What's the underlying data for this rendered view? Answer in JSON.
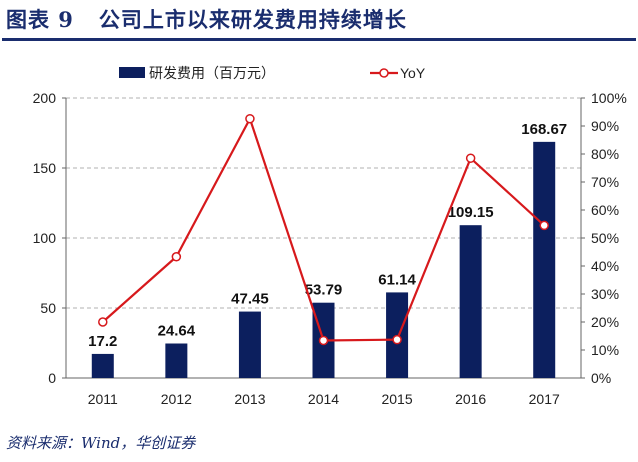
{
  "title": "图表 9   公司上市以来研发费用持续增长",
  "source": "资料来源：Wind，华创证券",
  "chart_data": {
    "type": "bar+line",
    "categories": [
      "2011",
      "2012",
      "2013",
      "2014",
      "2015",
      "2016",
      "2017"
    ],
    "series": [
      {
        "name": "研发费用（百万元）",
        "type": "bar",
        "axis": "left",
        "color": "#0c1f5e",
        "values": [
          17.2,
          24.64,
          47.45,
          53.79,
          61.14,
          109.15,
          168.67
        ],
        "labels": [
          "17.2",
          "24.64",
          "47.45",
          "53.79",
          "61.14",
          "109.15",
          "168.67"
        ]
      },
      {
        "name": "YoY",
        "type": "line",
        "axis": "right",
        "color": "#d7191c",
        "values": [
          20,
          43.3,
          92.6,
          13.4,
          13.7,
          78.5,
          54.5
        ]
      }
    ],
    "ylim_left": [
      0,
      200
    ],
    "yticks_left": [
      "0",
      "50",
      "100",
      "150",
      "200"
    ],
    "ylim_right": [
      0,
      100
    ],
    "yticks_right": [
      "0%",
      "10%",
      "20%",
      "30%",
      "40%",
      "50%",
      "60%",
      "70%",
      "80%",
      "90%",
      "100%"
    ],
    "grid": "dashed horizontal",
    "legend": "top"
  }
}
